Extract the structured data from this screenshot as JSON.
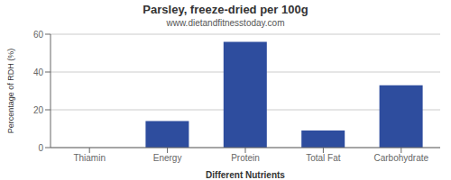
{
  "chart_data": {
    "type": "bar",
    "title": "Parsley, freeze-dried per 100g",
    "subtitle": "www.dietandfitnesstoday.com",
    "xlabel": "Different Nutrients",
    "ylabel": "Percentage of RDH (%)",
    "categories": [
      "Thiamin",
      "Energy",
      "Protein",
      "Total Fat",
      "Carbohydrate"
    ],
    "values": [
      0,
      14,
      56,
      9,
      33
    ],
    "color": "#2e4d9e",
    "ylim": [
      0,
      60
    ],
    "yticks": [
      0,
      20,
      40,
      60
    ],
    "grid": true
  }
}
